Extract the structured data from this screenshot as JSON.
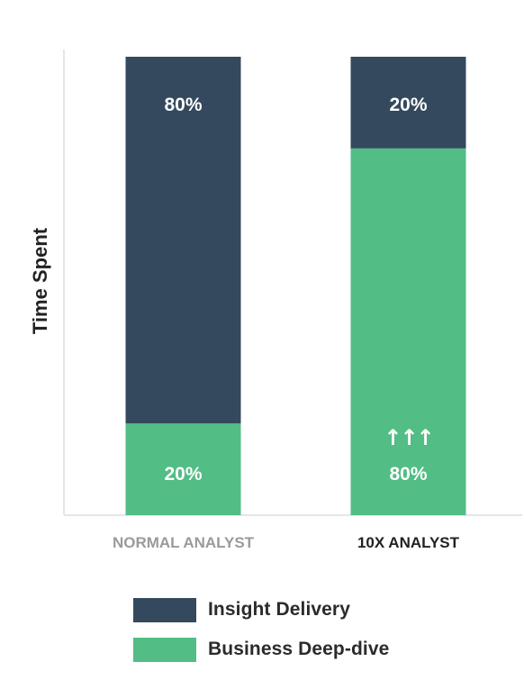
{
  "chart_data": {
    "type": "bar",
    "stacked": true,
    "percent": true,
    "categories": [
      "NORMAL ANALYST",
      "10X ANALYST"
    ],
    "series": [
      {
        "name": "Insight Delivery",
        "values": [
          80,
          20
        ],
        "color": "#34495e"
      },
      {
        "name": "Business Deep-dive",
        "values": [
          20,
          80
        ],
        "color": "#52bd84"
      }
    ],
    "data_labels": [
      [
        "80%",
        "20%"
      ],
      [
        "20%",
        "80%"
      ]
    ],
    "annotation": {
      "text": "↑↑↑",
      "category": "10X ANALYST",
      "series": "Business Deep-dive"
    },
    "ylabel": "Time Spent",
    "xlabel": "",
    "ylim": [
      0,
      100
    ],
    "category_colors": [
      "#9a9a9a",
      "#222222"
    ],
    "legend_position": "bottom",
    "grid": false
  }
}
